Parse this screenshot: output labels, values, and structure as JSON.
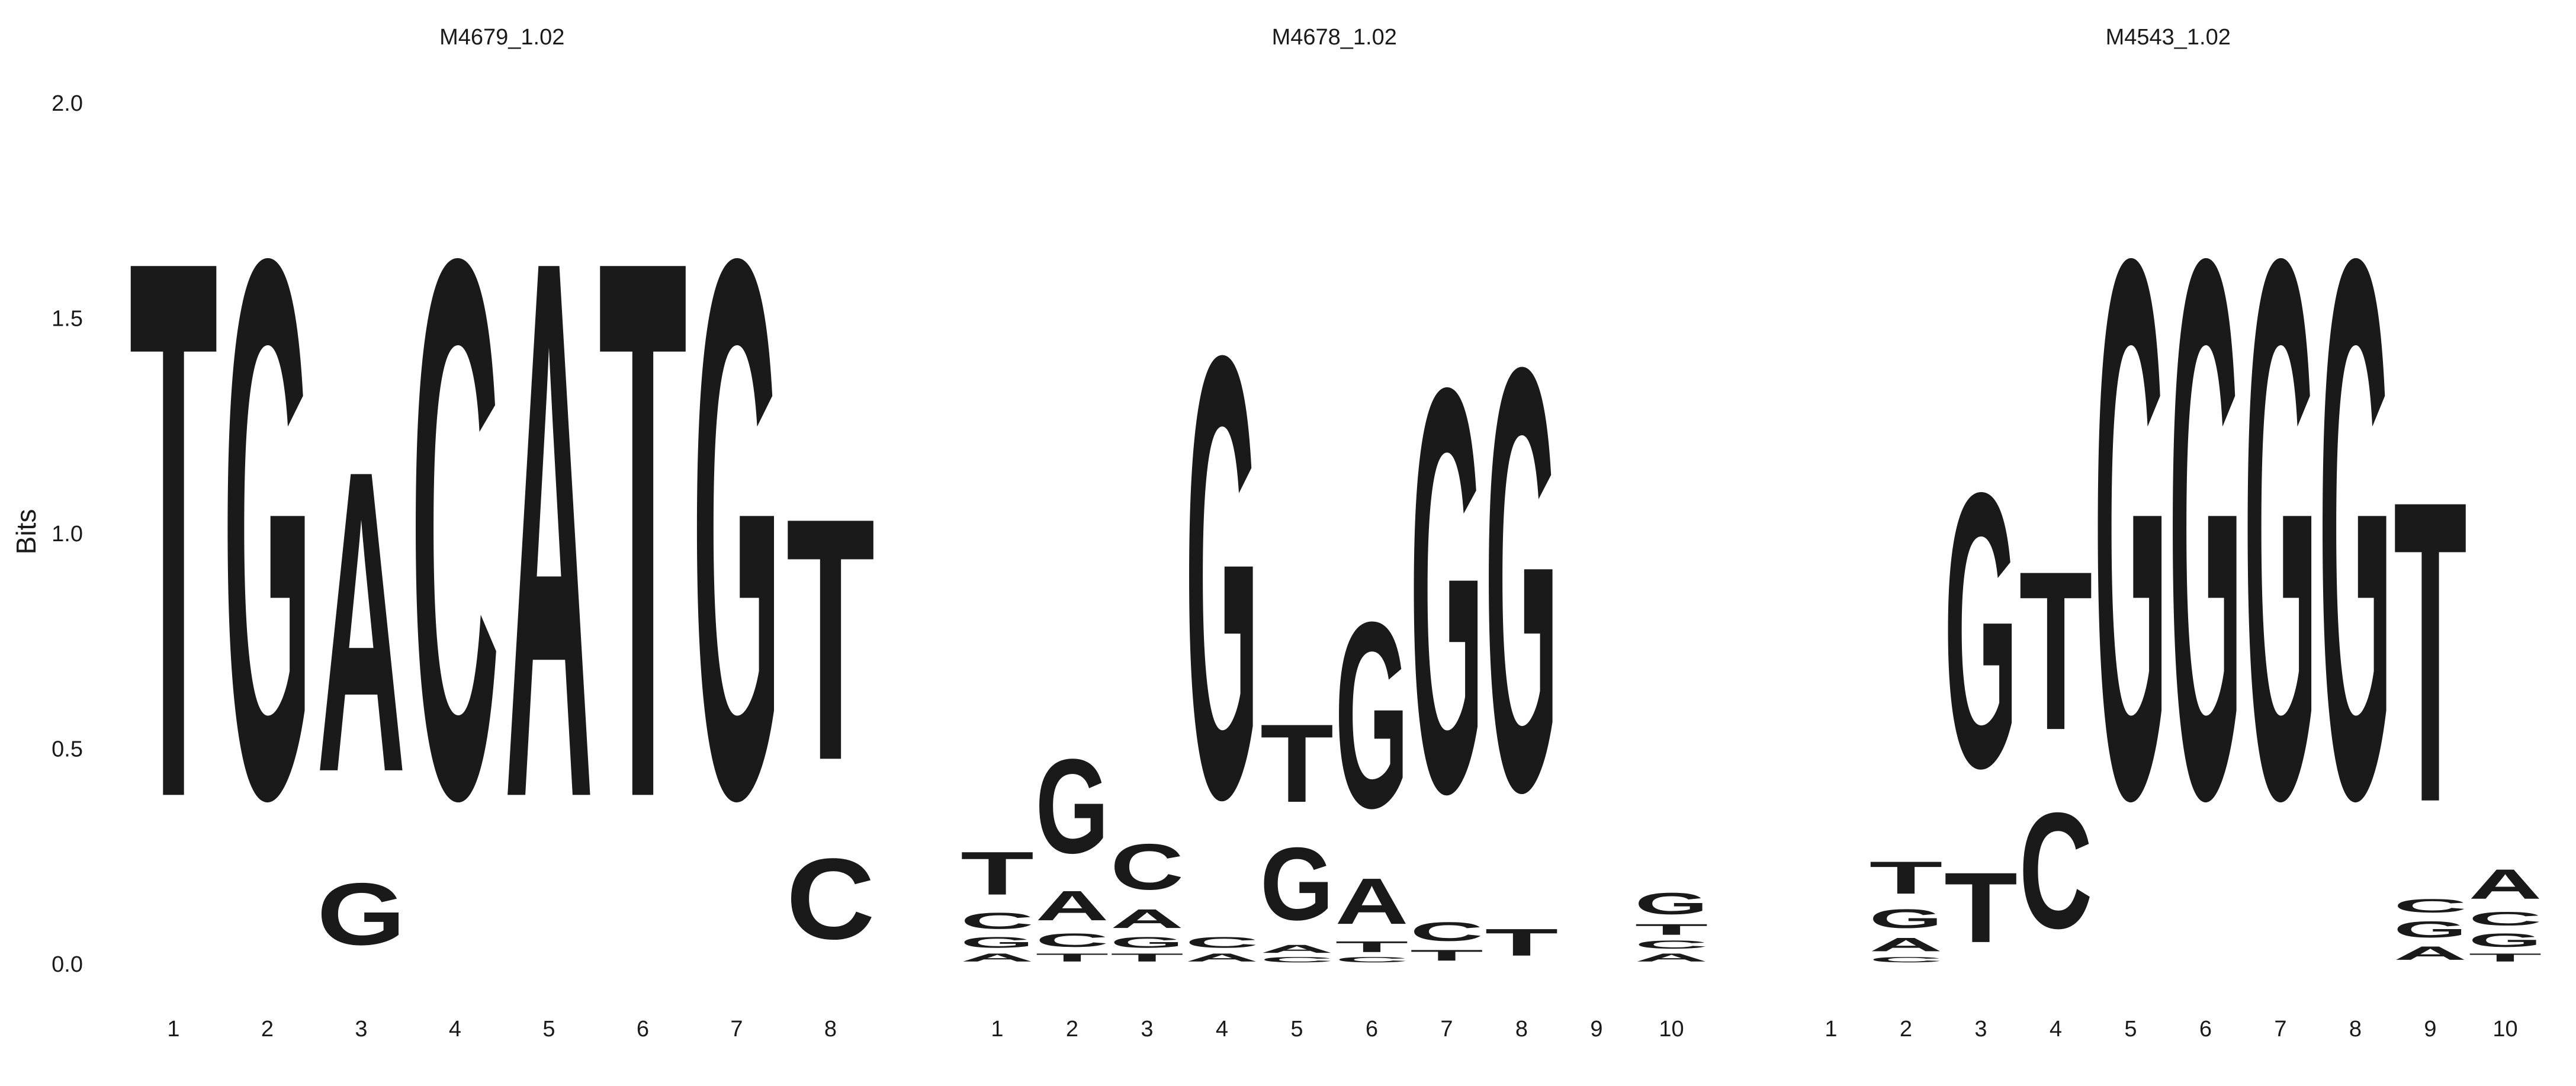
{
  "figure": {
    "ylabel": "Bits",
    "ylim": [
      0,
      2.0
    ],
    "yticks": [
      "0.0",
      "0.5",
      "1.0",
      "1.5",
      "2.0"
    ]
  },
  "colors": {
    "A": "#109648",
    "C": "#255C99",
    "G": "#F7B32B",
    "T": "#D62839"
  },
  "chart_data": [
    {
      "type": "sequence_logo",
      "title": "M4679_1.02",
      "ylabel": "Bits",
      "ylim": [
        0,
        2.0
      ],
      "positions": [
        "1",
        "2",
        "3",
        "4",
        "5",
        "6",
        "7",
        "8"
      ],
      "stacks": [
        [
          [
            "T",
            2.0
          ]
        ],
        [
          [
            "G",
            2.0
          ]
        ],
        [
          [
            "G",
            0.23
          ],
          [
            "A",
            1.12
          ]
        ],
        [
          [
            "C",
            2.0
          ]
        ],
        [
          [
            "A",
            2.0
          ]
        ],
        [
          [
            "T",
            2.0
          ]
        ],
        [
          [
            "G",
            2.0
          ]
        ],
        [
          [
            "C",
            0.3
          ],
          [
            "T",
            0.9
          ]
        ]
      ]
    },
    {
      "type": "sequence_logo",
      "title": "M4678_1.02",
      "ylim": [
        0,
        2.0
      ],
      "positions": [
        "1",
        "2",
        "3",
        "4",
        "5",
        "6",
        "7",
        "8",
        "9",
        "10"
      ],
      "stacks": [
        [
          [
            "A",
            0.03
          ],
          [
            "G",
            0.04
          ],
          [
            "C",
            0.06
          ],
          [
            "T",
            0.16
          ]
        ],
        [
          [
            "T",
            0.03
          ],
          [
            "C",
            0.05
          ],
          [
            "A",
            0.11
          ],
          [
            "G",
            0.35
          ]
        ],
        [
          [
            "T",
            0.03
          ],
          [
            "G",
            0.04
          ],
          [
            "A",
            0.07
          ],
          [
            "C",
            0.17
          ]
        ],
        [
          [
            "A",
            0.03
          ],
          [
            "C",
            0.04
          ],
          [
            "G",
            1.64
          ]
        ],
        [
          [
            "C",
            0.02
          ],
          [
            "A",
            0.03
          ],
          [
            "G",
            0.27
          ],
          [
            "T",
            0.29
          ]
        ],
        [
          [
            "C",
            0.02
          ],
          [
            "T",
            0.04
          ],
          [
            "A",
            0.17
          ],
          [
            "G",
            0.69
          ]
        ],
        [
          [
            "T",
            0.04
          ],
          [
            "C",
            0.07
          ],
          [
            "G",
            1.5
          ]
        ],
        [
          [
            "T",
            0.1
          ],
          [
            "G",
            1.57
          ]
        ],
        [],
        [
          [
            "A",
            0.03
          ],
          [
            "C",
            0.03
          ],
          [
            "T",
            0.04
          ],
          [
            "G",
            0.08
          ]
        ]
      ]
    },
    {
      "type": "sequence_logo",
      "title": "M4543_1.02",
      "ylim": [
        0,
        2.0
      ],
      "positions": [
        "1",
        "2",
        "3",
        "4",
        "5",
        "6",
        "7",
        "8",
        "9",
        "10"
      ],
      "stacks": [
        [],
        [
          [
            "C",
            0.02
          ],
          [
            "A",
            0.05
          ],
          [
            "G",
            0.07
          ],
          [
            "T",
            0.12
          ]
        ],
        [
          [
            "T",
            0.26
          ],
          [
            "G",
            1.02
          ]
        ],
        [
          [
            "C",
            0.43
          ],
          [
            "T",
            0.59
          ]
        ],
        [
          [
            "G",
            2.0
          ]
        ],
        [
          [
            "G",
            2.0
          ]
        ],
        [
          [
            "G",
            2.0
          ]
        ],
        [
          [
            "G",
            2.0
          ]
        ],
        [
          [
            "A",
            0.05
          ],
          [
            "G",
            0.06
          ],
          [
            "C",
            0.05
          ],
          [
            "T",
            1.12
          ]
        ],
        [
          [
            "T",
            0.03
          ],
          [
            "G",
            0.05
          ],
          [
            "C",
            0.05
          ],
          [
            "A",
            0.11
          ]
        ]
      ]
    }
  ]
}
